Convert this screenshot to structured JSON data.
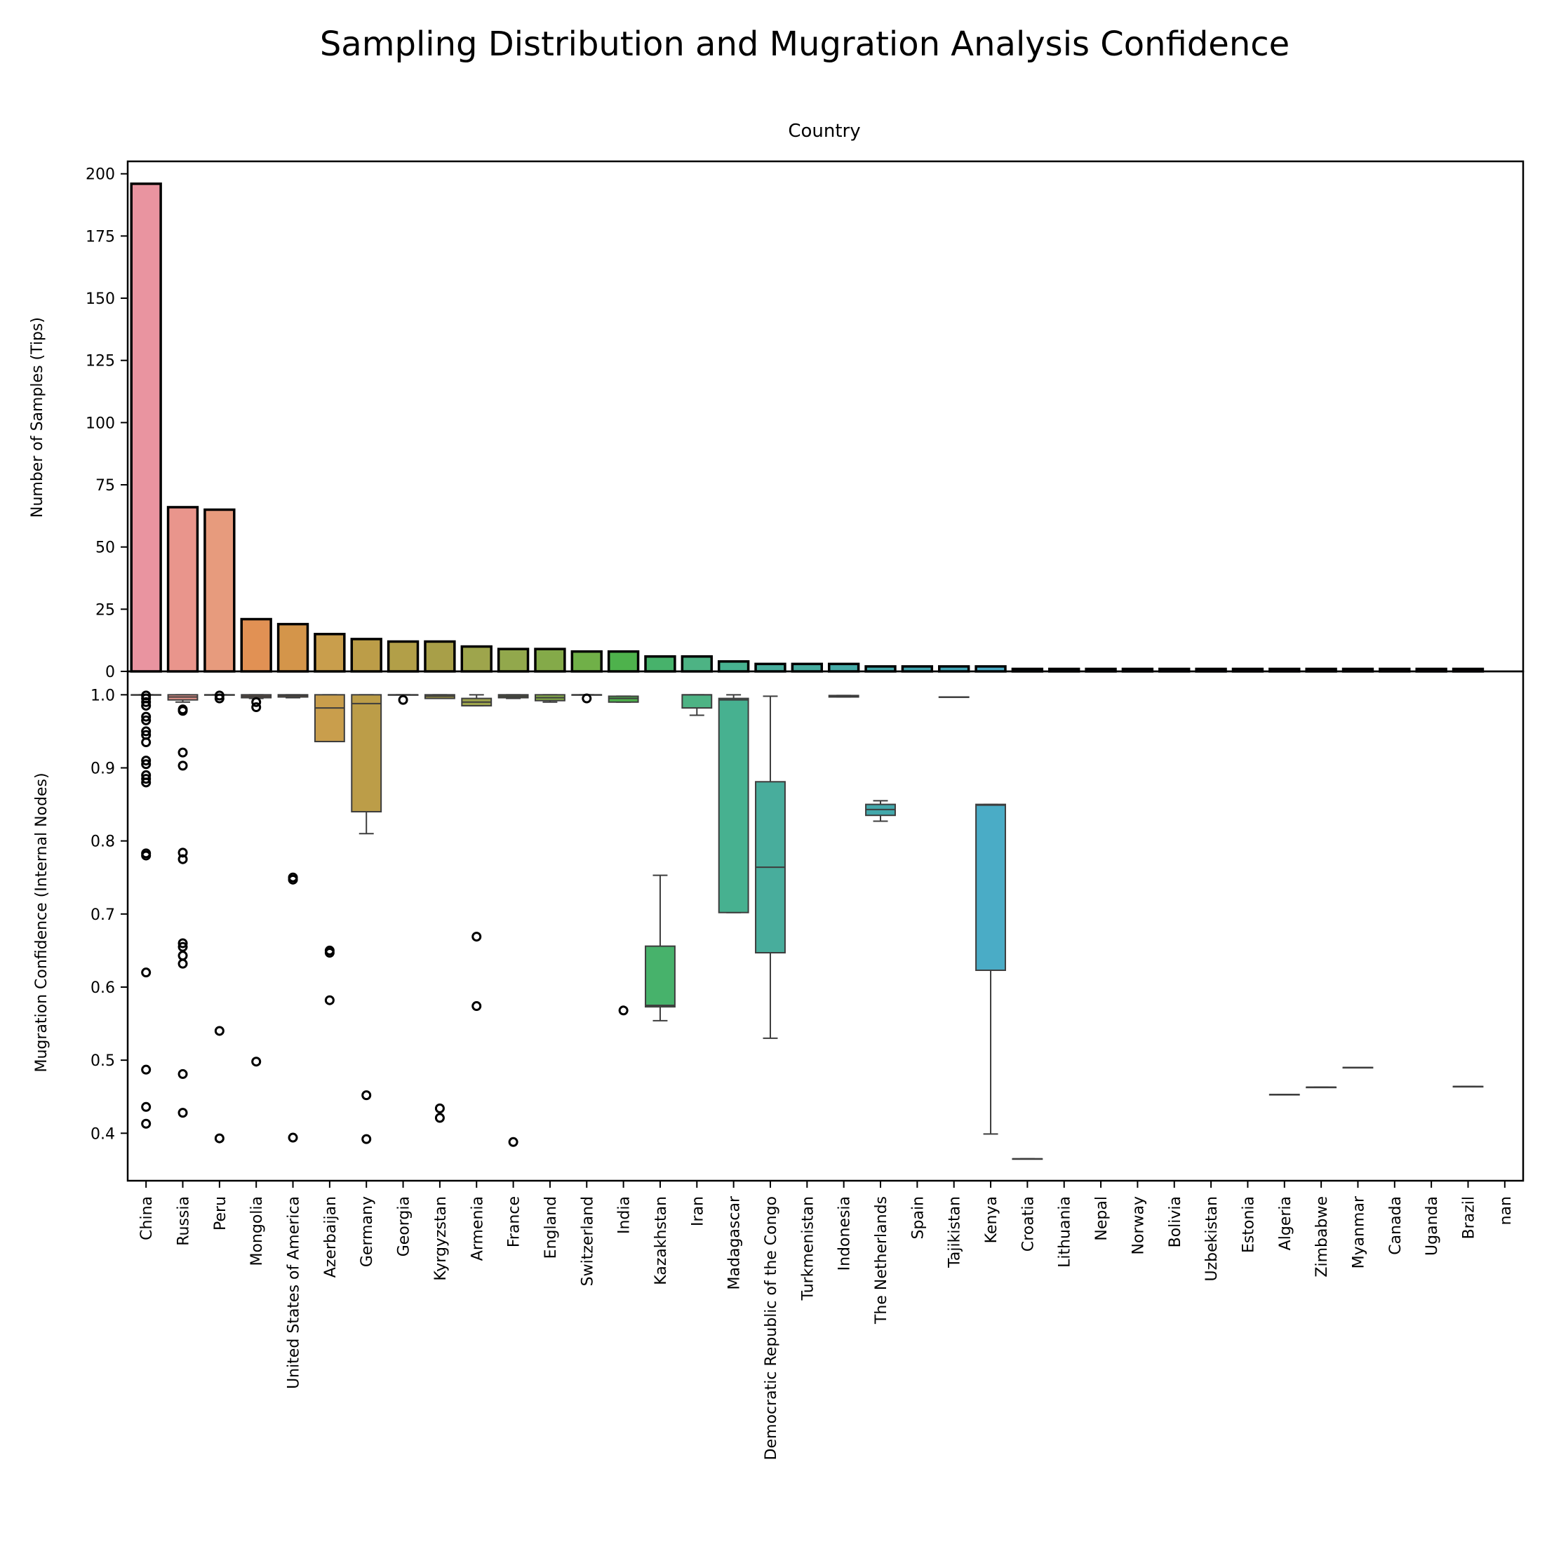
{
  "title": "Sampling Distribution and Mugration Analysis Confidence",
  "chart_data": [
    {
      "type": "bar",
      "title": "Country",
      "xlabel": "",
      "ylabel": "Number of Samples (Tips)",
      "ylim": [
        0,
        205
      ],
      "yticks": [
        0,
        25,
        50,
        75,
        100,
        125,
        150,
        175,
        200
      ],
      "grid": false,
      "categories": [
        "China",
        "Russia",
        "Peru",
        "Mongolia",
        "United States of America",
        "Azerbaijan",
        "Germany",
        "Georgia",
        "Kyrgyzstan",
        "Armenia",
        "France",
        "England",
        "Switzerland",
        "India",
        "Kazakhstan",
        "Iran",
        "Madagascar",
        "Democratic Republic of the Congo",
        "Turkmenistan",
        "Indonesia",
        "The Netherlands",
        "Spain",
        "Tajikistan",
        "Kenya",
        "Croatia",
        "Lithuania",
        "Nepal",
        "Norway",
        "Bolivia",
        "Uzbekistan",
        "Estonia",
        "Algeria",
        "Zimbabwe",
        "Myanmar",
        "Canada",
        "Uganda",
        "Brazil",
        "nan"
      ],
      "values": [
        196,
        66,
        65,
        21,
        19,
        15,
        13,
        12,
        12,
        10,
        9,
        9,
        8,
        8,
        6,
        6,
        4,
        3,
        3,
        3,
        2,
        2,
        2,
        2,
        1,
        1,
        1,
        1,
        1,
        1,
        1,
        1,
        1,
        1,
        1,
        1,
        1,
        0
      ]
    },
    {
      "type": "box",
      "xlabel": "",
      "ylabel": "Mugration Confidence (Internal Nodes)",
      "ylim": [
        0.335,
        1.032
      ],
      "yticks": [
        0.4,
        0.5,
        0.6,
        0.7,
        0.8,
        0.9,
        1.0
      ],
      "grid": false,
      "categories": [
        "China",
        "Russia",
        "Peru",
        "Mongolia",
        "United States of America",
        "Azerbaijan",
        "Germany",
        "Georgia",
        "Kyrgyzstan",
        "Armenia",
        "France",
        "England",
        "Switzerland",
        "India",
        "Kazakhstan",
        "Iran",
        "Madagascar",
        "Democratic Republic of the Congo",
        "Turkmenistan",
        "Indonesia",
        "The Netherlands",
        "Spain",
        "Tajikistan",
        "Kenya",
        "Croatia",
        "Lithuania",
        "Nepal",
        "Norway",
        "Bolivia",
        "Uzbekistan",
        "Estonia",
        "Algeria",
        "Zimbabwe",
        "Myanmar",
        "Canada",
        "Uganda",
        "Brazil",
        "nan"
      ],
      "boxes": [
        {
          "category": "China",
          "q1": 1.0,
          "median": 1.0,
          "q3": 1.0,
          "whislo": 1.0,
          "whishi": 1.0,
          "fliers": [
            0.999,
            0.995,
            0.99,
            0.985,
            0.97,
            0.965,
            0.95,
            0.945,
            0.935,
            0.91,
            0.905,
            0.89,
            0.885,
            0.88,
            0.783,
            0.78,
            0.62,
            0.487,
            0.436,
            0.413
          ]
        },
        {
          "category": "Russia",
          "q1": 0.993,
          "median": 0.997,
          "q3": 1.0,
          "whislo": 0.99,
          "whishi": 1.0,
          "fliers": [
            0.98,
            0.978,
            0.921,
            0.903,
            0.784,
            0.775,
            0.66,
            0.655,
            0.643,
            0.632,
            0.481,
            0.428
          ]
        },
        {
          "category": "Peru",
          "q1": 1.0,
          "median": 1.0,
          "q3": 1.0,
          "whislo": 1.0,
          "whishi": 1.0,
          "fliers": [
            0.999,
            0.995,
            0.54,
            0.393
          ]
        },
        {
          "category": "Mongolia",
          "q1": 0.996,
          "median": 0.998,
          "q3": 1.0,
          "whislo": 0.995,
          "whishi": 1.0,
          "fliers": [
            0.99,
            0.983,
            0.498
          ]
        },
        {
          "category": "United States of America",
          "q1": 0.997,
          "median": 0.999,
          "q3": 1.0,
          "whislo": 0.996,
          "whishi": 1.0,
          "fliers": [
            0.75,
            0.747,
            0.394
          ]
        },
        {
          "category": "Azerbaijan",
          "q1": 0.936,
          "median": 0.982,
          "q3": 1.0,
          "whislo": 0.936,
          "whishi": 1.0,
          "fliers": [
            0.65,
            0.647,
            0.582
          ]
        },
        {
          "category": "Germany",
          "q1": 0.84,
          "median": 0.988,
          "q3": 1.0,
          "whislo": 0.81,
          "whishi": 1.0,
          "fliers": [
            0.452,
            0.392
          ]
        },
        {
          "category": "Georgia",
          "q1": 1.0,
          "median": 1.0,
          "q3": 1.0,
          "whislo": 1.0,
          "whishi": 1.0,
          "fliers": [
            0.993
          ]
        },
        {
          "category": "Kyrgyzstan",
          "q1": 0.995,
          "median": 0.998,
          "q3": 1.0,
          "whislo": 0.995,
          "whishi": 1.0,
          "fliers": [
            0.434,
            0.421
          ]
        },
        {
          "category": "Armenia",
          "q1": 0.985,
          "median": 0.99,
          "q3": 0.995,
          "whislo": 0.985,
          "whishi": 1.0,
          "fliers": [
            0.669,
            0.574
          ]
        },
        {
          "category": "France",
          "q1": 0.996,
          "median": 0.998,
          "q3": 1.0,
          "whislo": 0.995,
          "whishi": 1.0,
          "fliers": [
            0.388
          ]
        },
        {
          "category": "England",
          "q1": 0.992,
          "median": 0.996,
          "q3": 1.0,
          "whislo": 0.99,
          "whishi": 1.0,
          "fliers": []
        },
        {
          "category": "Switzerland",
          "q1": 1.0,
          "median": 1.0,
          "q3": 1.0,
          "whislo": 1.0,
          "whishi": 1.0,
          "fliers": [
            0.995
          ]
        },
        {
          "category": "India",
          "q1": 0.99,
          "median": 0.995,
          "q3": 0.998,
          "whislo": 0.99,
          "whishi": 0.998,
          "fliers": [
            0.568
          ]
        },
        {
          "category": "Kazakhstan",
          "q1": 0.573,
          "median": 0.575,
          "q3": 0.656,
          "whislo": 0.554,
          "whishi": 0.753,
          "fliers": []
        },
        {
          "category": "Iran",
          "q1": 0.982,
          "median": 1.0,
          "q3": 1.0,
          "whislo": 0.972,
          "whishi": 1.0,
          "fliers": []
        },
        {
          "category": "Madagascar",
          "q1": 0.702,
          "median": 0.993,
          "q3": 0.995,
          "whislo": 0.702,
          "whishi": 1.0,
          "fliers": []
        },
        {
          "category": "Democratic Republic of the Congo",
          "q1": 0.647,
          "median": 0.764,
          "q3": 0.881,
          "whislo": 0.53,
          "whishi": 0.998,
          "fliers": []
        },
        {
          "category": "Turkmenistan",
          "q1": null,
          "median": null,
          "q3": null,
          "whislo": null,
          "whishi": null,
          "fliers": []
        },
        {
          "category": "Indonesia",
          "q1": 0.997,
          "median": 0.998,
          "q3": 0.999,
          "whislo": 0.997,
          "whishi": 0.999,
          "fliers": []
        },
        {
          "category": "The Netherlands",
          "q1": 0.835,
          "median": 0.843,
          "q3": 0.85,
          "whislo": 0.827,
          "whishi": 0.855,
          "fliers": []
        },
        {
          "category": "Spain",
          "q1": null,
          "median": null,
          "q3": null,
          "whislo": null,
          "whishi": null,
          "fliers": []
        },
        {
          "category": "Tajikistan",
          "q1": 0.997,
          "median": 0.997,
          "q3": 0.997,
          "whislo": 0.997,
          "whishi": 0.997,
          "fliers": []
        },
        {
          "category": "Kenya",
          "q1": 0.623,
          "median": 0.849,
          "q3": 0.85,
          "whislo": 0.399,
          "whishi": 0.85,
          "fliers": []
        },
        {
          "category": "Croatia",
          "q1": 0.365,
          "median": 0.365,
          "q3": 0.365,
          "whislo": 0.365,
          "whishi": 0.365,
          "fliers": []
        },
        {
          "category": "Lithuania",
          "q1": null,
          "median": null,
          "q3": null,
          "whislo": null,
          "whishi": null,
          "fliers": []
        },
        {
          "category": "Nepal",
          "q1": null,
          "median": null,
          "q3": null,
          "whislo": null,
          "whishi": null,
          "fliers": []
        },
        {
          "category": "Norway",
          "q1": null,
          "median": null,
          "q3": null,
          "whislo": null,
          "whishi": null,
          "fliers": []
        },
        {
          "category": "Bolivia",
          "q1": null,
          "median": null,
          "q3": null,
          "whislo": null,
          "whishi": null,
          "fliers": []
        },
        {
          "category": "Uzbekistan",
          "q1": null,
          "median": null,
          "q3": null,
          "whislo": null,
          "whishi": null,
          "fliers": []
        },
        {
          "category": "Estonia",
          "q1": null,
          "median": null,
          "q3": null,
          "whislo": null,
          "whishi": null,
          "fliers": []
        },
        {
          "category": "Algeria",
          "q1": 0.453,
          "median": 0.453,
          "q3": 0.453,
          "whislo": 0.453,
          "whishi": 0.453,
          "fliers": []
        },
        {
          "category": "Zimbabwe",
          "q1": 0.463,
          "median": 0.463,
          "q3": 0.463,
          "whislo": 0.463,
          "whishi": 0.463,
          "fliers": []
        },
        {
          "category": "Myanmar",
          "q1": 0.49,
          "median": 0.49,
          "q3": 0.49,
          "whislo": 0.49,
          "whishi": 0.49,
          "fliers": []
        },
        {
          "category": "Canada",
          "q1": null,
          "median": null,
          "q3": null,
          "whislo": null,
          "whishi": null,
          "fliers": []
        },
        {
          "category": "Uganda",
          "q1": null,
          "median": null,
          "q3": null,
          "whislo": null,
          "whishi": null,
          "fliers": []
        },
        {
          "category": "Brazil",
          "q1": 0.464,
          "median": 0.464,
          "q3": 0.464,
          "whislo": 0.464,
          "whishi": 0.464,
          "fliers": []
        },
        {
          "category": "nan",
          "q1": null,
          "median": null,
          "q3": null,
          "whislo": null,
          "whishi": null,
          "fliers": []
        }
      ]
    }
  ],
  "colors": {
    "palette": [
      "#e994a0",
      "#e9958c",
      "#e79b7d",
      "#e19154",
      "#d4954a",
      "#c99e4c",
      "#bc9d48",
      "#b29f48",
      "#a89f48",
      "#9ea54c",
      "#92a84c",
      "#84aa49",
      "#70b048",
      "#4eb24c",
      "#47b26b",
      "#4db384",
      "#47b190",
      "#48ad9c",
      "#46ab9e",
      "#46aaa6",
      "#43a8ab",
      "#43a7b2",
      "#43a7b8",
      "#4aacc6",
      "#6aa9d0",
      "#82a5d8",
      "#8c9bd8",
      "#9a93d9",
      "#ab8bd6",
      "#bc86d2",
      "#c886cf",
      "#d686c8",
      "#dd88bc",
      "#e28ab5",
      "#e68cac",
      "#e88ea6",
      "#e9919f",
      "#e9949d"
    ],
    "edge": "#000000",
    "whisker": "#3d3d3d"
  }
}
